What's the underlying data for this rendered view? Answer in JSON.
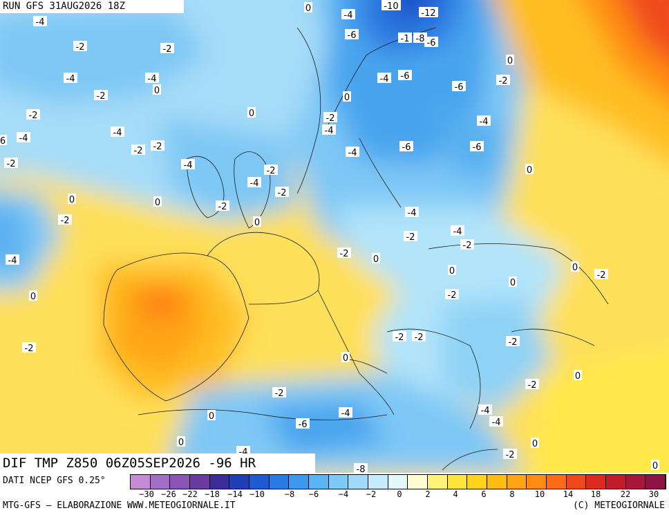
{
  "header": {
    "run": "RUN GFS 31AUG2026 18Z"
  },
  "title_banner": "DIF TMP Z850 06Z05SEP2026 -96 HR",
  "footer": {
    "source": "DATI NCEP GFS 0.25°",
    "credits": "MTG-GFS – ELABORAZIONE WWW.METEOGIORNALE.IT",
    "copyright": "(C) METEOGIORNALE"
  },
  "legend": {
    "colors": [
      "#c58bd6",
      "#a56ec6",
      "#8a55b5",
      "#6a3aa0",
      "#3c2d9a",
      "#1f3fb4",
      "#1e5ad2",
      "#2a7ae6",
      "#3f98f0",
      "#5ab4f6",
      "#7dcaf8",
      "#a0dcfa",
      "#c5ecfc",
      "#e2f8fb",
      "#fffbd0",
      "#fff27a",
      "#ffe43a",
      "#ffd21c",
      "#ffbd12",
      "#ffa412",
      "#ff8c10",
      "#ff6a14",
      "#f0461c",
      "#dc2a20",
      "#c41c2a",
      "#a8163a",
      "#8e1244"
    ],
    "ticks": [
      "−30",
      "−26",
      "−22",
      "−18",
      "−14",
      "−10",
      "−8",
      "−6",
      "−4",
      "−2",
      "0",
      "2",
      "4",
      "6",
      "8",
      "10",
      "14",
      "18",
      "22",
      "30"
    ]
  },
  "map_labels": [
    {
      "t": "0"
    },
    {
      "t": "-4"
    },
    {
      "t": "-10"
    },
    {
      "t": "-12"
    },
    {
      "t": "-4"
    },
    {
      "t": "-6"
    },
    {
      "t": "-2"
    },
    {
      "t": "-2"
    },
    {
      "t": "-1"
    },
    {
      "t": "-8"
    },
    {
      "t": "-6"
    },
    {
      "t": "0"
    },
    {
      "t": "-4"
    },
    {
      "t": "-4"
    },
    {
      "t": "0"
    },
    {
      "t": "-2"
    },
    {
      "t": "-4"
    },
    {
      "t": "-6"
    },
    {
      "t": "-6"
    },
    {
      "t": "-2"
    },
    {
      "t": "-2"
    },
    {
      "t": "0"
    },
    {
      "t": "-2"
    },
    {
      "t": "0"
    },
    {
      "t": "-2"
    },
    {
      "t": "-4"
    },
    {
      "t": "-4"
    },
    {
      "t": "-4"
    },
    {
      "t": "-2"
    },
    {
      "t": "-2"
    },
    {
      "t": "-4"
    },
    {
      "t": "-4"
    },
    {
      "t": "-6"
    },
    {
      "t": "6"
    },
    {
      "t": "-2"
    },
    {
      "t": "-4"
    },
    {
      "t": "-2"
    },
    {
      "t": "-4"
    },
    {
      "t": "-2"
    },
    {
      "t": "0"
    },
    {
      "t": "0"
    },
    {
      "t": "-2"
    },
    {
      "t": "-6"
    },
    {
      "t": "-2"
    },
    {
      "t": "0"
    },
    {
      "t": "-4"
    },
    {
      "t": "-2"
    },
    {
      "t": "-4"
    },
    {
      "t": "-2"
    },
    {
      "t": "-4"
    },
    {
      "t": "-2"
    },
    {
      "t": "0"
    },
    {
      "t": "0"
    },
    {
      "t": "0"
    },
    {
      "t": "0"
    },
    {
      "t": "0"
    },
    {
      "t": "-2"
    },
    {
      "t": "0"
    },
    {
      "t": "-2"
    },
    {
      "t": "-2"
    },
    {
      "t": "0"
    },
    {
      "t": "-2"
    },
    {
      "t": "-2"
    },
    {
      "t": "0"
    },
    {
      "t": "-2"
    },
    {
      "t": "-2"
    },
    {
      "t": "-4"
    },
    {
      "t": "-6"
    },
    {
      "t": "-4"
    },
    {
      "t": "-4"
    },
    {
      "t": "0"
    },
    {
      "t": "0"
    },
    {
      "t": "-4"
    },
    {
      "t": "-8"
    },
    {
      "t": "0"
    },
    {
      "t": "-2"
    },
    {
      "t": "0"
    }
  ]
}
